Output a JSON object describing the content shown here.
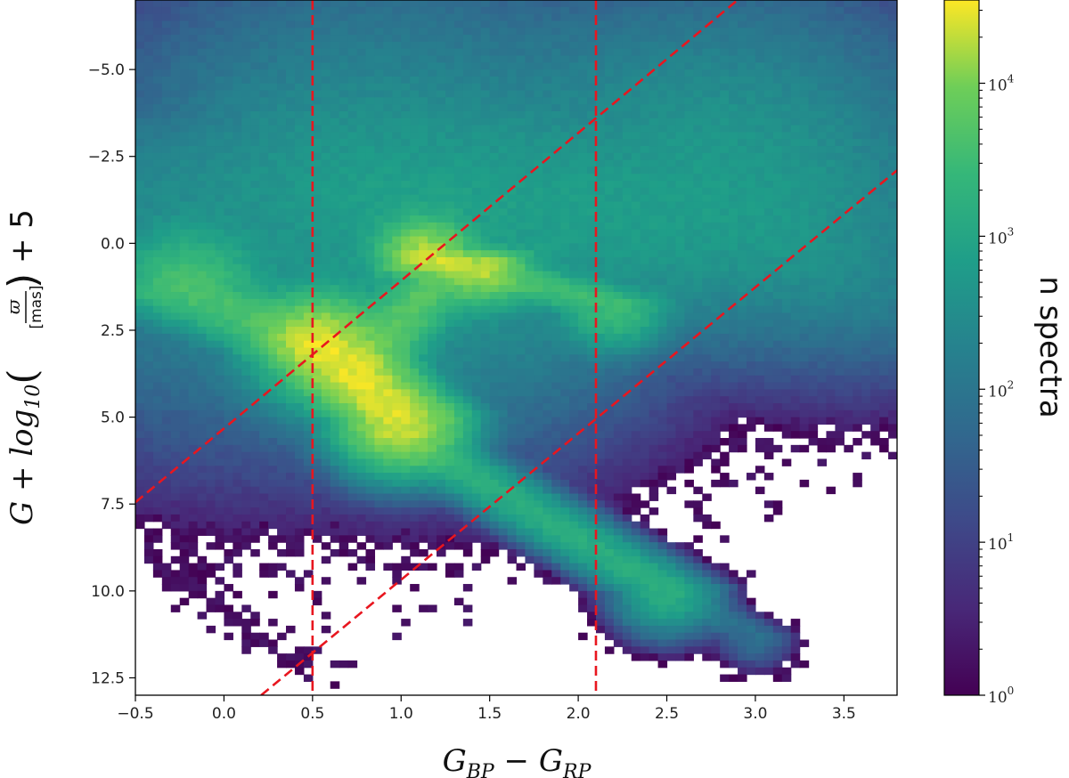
{
  "chart_data": {
    "type": "heatmap",
    "title": "",
    "xlabel": "G_BP − G_RP",
    "xlabel_parts": {
      "base1": "G",
      "sub1": "BP",
      "minus": " − ",
      "base2": "G",
      "sub2": "RP"
    },
    "ylabel": "G + log10(ϖ/[mas]) + 5",
    "ylabel_parts": {
      "g": "G",
      "plus1": " + ",
      "log": "log",
      "sub10": "10",
      "frac_num": "ϖ",
      "frac_den": "[mas]",
      "plus5": " + 5"
    },
    "xlim": [
      -0.5,
      3.8
    ],
    "ylim": [
      13.0,
      -7.0
    ],
    "y_inverted": true,
    "x_ticks": [
      -0.5,
      0.0,
      0.5,
      1.0,
      1.5,
      2.0,
      2.5,
      3.0,
      3.5
    ],
    "x_tick_labels": [
      "−0.5",
      "0.0",
      "0.5",
      "1.0",
      "1.5",
      "2.0",
      "2.5",
      "3.0",
      "3.5"
    ],
    "y_ticks": [
      -5.0,
      -2.5,
      0.0,
      2.5,
      5.0,
      7.5,
      10.0,
      12.5
    ],
    "y_tick_labels": [
      "−5.0",
      "−2.5",
      "0.0",
      "2.5",
      "5.0",
      "7.5",
      "10.0",
      "12.5"
    ],
    "colorbar": {
      "label": "n spectra",
      "scale": "log",
      "colormap": "viridis",
      "range": [
        1,
        35000
      ],
      "ticks": [
        1,
        10,
        100,
        1000,
        10000
      ],
      "tick_labels": [
        {
          "base": "10",
          "exp": "0"
        },
        {
          "base": "10",
          "exp": "1"
        },
        {
          "base": "10",
          "exp": "2"
        },
        {
          "base": "10",
          "exp": "3"
        },
        {
          "base": "10",
          "exp": "4"
        }
      ]
    },
    "density_components": [
      {
        "name": "main-sequence-upper",
        "x0": -0.2,
        "y0": 1.4,
        "x1": 0.55,
        "y1": 3.0,
        "width": 0.2,
        "peak": 4000
      },
      {
        "name": "main-sequence-core",
        "x0": 0.55,
        "y0": 3.0,
        "x1": 1.0,
        "y1": 5.0,
        "width": 0.16,
        "peak": 25000
      },
      {
        "name": "main-sequence-lower",
        "x0": 0.9,
        "y0": 5.2,
        "x1": 2.5,
        "y1": 10.0,
        "width": 0.13,
        "peak": 1500
      },
      {
        "name": "main-sequence-tail",
        "x0": 2.5,
        "y0": 10.0,
        "x1": 3.0,
        "y1": 11.3,
        "width": 0.1,
        "peak": 80
      },
      {
        "name": "subgiant-branch",
        "x0": 0.85,
        "y0": 3.2,
        "x1": 1.2,
        "y1": 1.0,
        "width": 0.12,
        "peak": 5000
      },
      {
        "name": "red-clump",
        "x0": 1.15,
        "y0": 0.45,
        "x1": 1.45,
        "y1": 0.65,
        "width": 0.12,
        "peak": 16000
      },
      {
        "name": "red-giant-branch",
        "x0": 1.1,
        "y0": 0.3,
        "x1": 2.2,
        "y1": 1.8,
        "width": 0.14,
        "peak": 3000
      },
      {
        "name": "giant-cloud",
        "x0": 1.2,
        "y0": -0.5,
        "x1": 2.8,
        "y1": -1.0,
        "width": 0.65,
        "peak": 600
      },
      {
        "name": "upper-blue-region",
        "x0": -0.2,
        "y0": -1.3,
        "x1": 0.9,
        "y1": -2.0,
        "width": 0.7,
        "peak": 250
      },
      {
        "name": "bright-giants-top",
        "x0": 0.3,
        "y0": -4.2,
        "x1": 2.4,
        "y1": -3.6,
        "width": 0.6,
        "peak": 25
      },
      {
        "name": "red-giant-extension",
        "x0": 2.4,
        "y0": -0.2,
        "x1": 3.6,
        "y1": 0.6,
        "width": 0.45,
        "peak": 40
      },
      {
        "name": "left-faint-wing",
        "x0": -0.5,
        "y0": 2.5,
        "x1": -0.1,
        "y1": 4.6,
        "width": 0.45,
        "peak": 6
      },
      {
        "name": "white-dwarf-sequence",
        "x0": -0.2,
        "y0": 9.8,
        "x1": 0.5,
        "y1": 12.2,
        "width": 0.12,
        "peak": 2
      }
    ],
    "dashed_lines": [
      {
        "kind": "vertical",
        "x": 0.5
      },
      {
        "kind": "vertical",
        "x": 2.1
      },
      {
        "kind": "sloped",
        "points": [
          [
            -0.5,
            7.45
          ],
          [
            2.9,
            -7.0
          ]
        ]
      },
      {
        "kind": "sloped",
        "points": [
          [
            0.21,
            13.0
          ],
          [
            3.8,
            -2.1
          ]
        ]
      }
    ],
    "line_color": "#e8161f"
  }
}
